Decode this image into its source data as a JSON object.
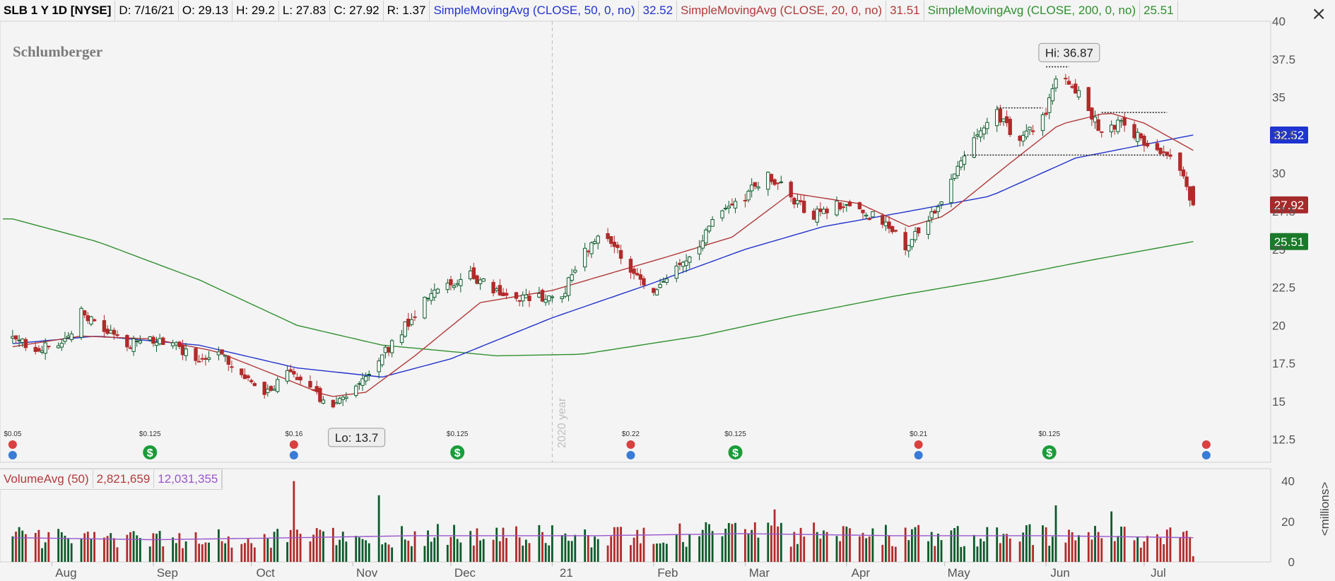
{
  "header": {
    "symbol": "SLB 1 Y 1D [NYSE]",
    "date": "D: 7/16/21",
    "open": "O: 29.13",
    "high": "H: 29.2",
    "low": "L: 27.83",
    "close": "C: 27.92",
    "range": "R: 1.37",
    "sma50_label": "SimpleMovingAvg (CLOSE, 50, 0, no)",
    "sma50_value": "32.52",
    "sma20_label": "SimpleMovingAvg (CLOSE, 20, 0, no)",
    "sma20_value": "31.51",
    "sma200_label": "SimpleMovingAvg (CLOSE, 200, 0, no)",
    "sma200_value": "25.51"
  },
  "company": "Schlumberger",
  "year_marker": "2020 year",
  "hi_label": "Hi: 36.87",
  "lo_label": "Lo: 13.7",
  "price_tags": {
    "sma50": "32.52",
    "close": "27.92",
    "sma200": "25.51"
  },
  "volume_header": {
    "label": "VolumeAvg (50)",
    "volume": "2,821,659",
    "avg": "12,031,355"
  },
  "volume_unit": "<millions>",
  "colors": {
    "up": "#0c5a2a",
    "down": "#b22a2a",
    "sma50": "#2233cc",
    "sma20": "#b23a3a",
    "sma200": "#2f8f2f",
    "vol_avg": "#9955cc",
    "price_label": "#555"
  },
  "chart_data": {
    "type": "candlestick",
    "price_axis": {
      "ticks": [
        "12.5",
        "15",
        "17.5",
        "20",
        "22.5",
        "25",
        "27.5",
        "30",
        "32.5",
        "35",
        "37.5",
        "40"
      ],
      "ylim": [
        11,
        40
      ]
    },
    "volume_axis": {
      "ticks": [
        "0",
        "20",
        "40"
      ],
      "ylim": [
        0,
        42
      ],
      "unit": "<millions>"
    },
    "x_axis_labels": [
      "Aug",
      "Sep",
      "Oct",
      "Nov",
      "Dec",
      "21",
      "Feb",
      "Mar",
      "Apr",
      "May",
      "Jun",
      "Jul"
    ],
    "price_anchors": [
      [
        "2020-07-20",
        19.0
      ],
      [
        "2020-07-27",
        18.6
      ],
      [
        "2020-08-03",
        18.4
      ],
      [
        "2020-08-10",
        20.8
      ],
      [
        "2020-08-17",
        19.6
      ],
      [
        "2020-08-24",
        18.8
      ],
      [
        "2020-08-31",
        19.0
      ],
      [
        "2020-09-07",
        18.8
      ],
      [
        "2020-09-14",
        17.6
      ],
      [
        "2020-09-21",
        18.6
      ],
      [
        "2020-09-28",
        16.6
      ],
      [
        "2020-10-05",
        15.4
      ],
      [
        "2020-10-12",
        16.8
      ],
      [
        "2020-10-19",
        15.6
      ],
      [
        "2020-10-26",
        14.6
      ],
      [
        "2020-11-02",
        15.8
      ],
      [
        "2020-11-09",
        17.8
      ],
      [
        "2020-11-16",
        19.6
      ],
      [
        "2020-11-23",
        21.6
      ],
      [
        "2020-11-30",
        22.6
      ],
      [
        "2020-12-07",
        23.4
      ],
      [
        "2020-12-14",
        22.2
      ],
      [
        "2020-12-21",
        21.6
      ],
      [
        "2021-01-04",
        22.0
      ],
      [
        "2021-01-11",
        25.0
      ],
      [
        "2021-01-18",
        26.0
      ],
      [
        "2021-01-25",
        23.8
      ],
      [
        "2021-02-01",
        22.0
      ],
      [
        "2021-02-08",
        23.8
      ],
      [
        "2021-02-15",
        25.5
      ],
      [
        "2021-02-22",
        27.5
      ],
      [
        "2021-03-01",
        28.5
      ],
      [
        "2021-03-08",
        30.0
      ],
      [
        "2021-03-15",
        28.5
      ],
      [
        "2021-03-22",
        27.2
      ],
      [
        "2021-03-29",
        28.0
      ],
      [
        "2021-04-05",
        27.6
      ],
      [
        "2021-04-12",
        26.8
      ],
      [
        "2021-04-19",
        25.2
      ],
      [
        "2021-04-26",
        26.8
      ],
      [
        "2021-05-03",
        29.5
      ],
      [
        "2021-05-10",
        32.0
      ],
      [
        "2021-05-17",
        34.0
      ],
      [
        "2021-05-24",
        32.0
      ],
      [
        "2021-06-01",
        34.0
      ],
      [
        "2021-06-04",
        36.5
      ],
      [
        "2021-06-11",
        35.2
      ],
      [
        "2021-06-18",
        32.8
      ],
      [
        "2021-06-25",
        33.5
      ],
      [
        "2021-07-01",
        31.8
      ],
      [
        "2021-07-08",
        31.2
      ],
      [
        "2021-07-12",
        30.5
      ],
      [
        "2021-07-16",
        27.92
      ]
    ],
    "sma20_anchors": [
      [
        "2020-07-20",
        18.6
      ],
      [
        "2020-08-10",
        19.3
      ],
      [
        "2020-09-01",
        19.1
      ],
      [
        "2020-09-20",
        18.3
      ],
      [
        "2020-10-10",
        16.6
      ],
      [
        "2020-10-25",
        15.3
      ],
      [
        "2020-11-05",
        15.6
      ],
      [
        "2020-11-20",
        18.0
      ],
      [
        "2020-12-10",
        21.5
      ],
      [
        "2021-01-01",
        22.3
      ],
      [
        "2021-01-20",
        23.5
      ],
      [
        "2021-02-05",
        24.5
      ],
      [
        "2021-02-25",
        25.8
      ],
      [
        "2021-03-15",
        28.7
      ],
      [
        "2021-04-05",
        28.0
      ],
      [
        "2021-04-20",
        26.5
      ],
      [
        "2021-05-01",
        27.2
      ],
      [
        "2021-05-20",
        30.5
      ],
      [
        "2021-06-05",
        33.2
      ],
      [
        "2021-06-20",
        34.0
      ],
      [
        "2021-07-01",
        33.3
      ],
      [
        "2021-07-16",
        31.51
      ]
    ],
    "sma50_anchors": [
      [
        "2020-07-20",
        18.8
      ],
      [
        "2020-08-15",
        19.3
      ],
      [
        "2020-09-15",
        18.7
      ],
      [
        "2020-10-15",
        17.2
      ],
      [
        "2020-11-10",
        16.6
      ],
      [
        "2020-12-01",
        17.8
      ],
      [
        "2021-01-01",
        20.5
      ],
      [
        "2021-02-01",
        22.8
      ],
      [
        "2021-03-01",
        25.0
      ],
      [
        "2021-03-25",
        26.5
      ],
      [
        "2021-04-20",
        27.5
      ],
      [
        "2021-05-15",
        28.5
      ],
      [
        "2021-06-10",
        31.0
      ],
      [
        "2021-07-16",
        32.52
      ]
    ],
    "sma200_anchors": [
      [
        "2020-07-20",
        27.0
      ],
      [
        "2020-08-15",
        25.5
      ],
      [
        "2020-09-15",
        23.0
      ],
      [
        "2020-10-15",
        20.0
      ],
      [
        "2020-11-10",
        18.7
      ],
      [
        "2020-12-15",
        18.0
      ],
      [
        "2021-01-10",
        18.1
      ],
      [
        "2021-02-15",
        19.3
      ],
      [
        "2021-03-15",
        20.6
      ],
      [
        "2021-04-15",
        21.9
      ],
      [
        "2021-05-15",
        23.0
      ],
      [
        "2021-06-15",
        24.3
      ],
      [
        "2021-07-16",
        25.51
      ]
    ],
    "volume_avg_anchors": [
      [
        "2020-07-20",
        12
      ],
      [
        "2020-09-01",
        11
      ],
      [
        "2020-10-15",
        12
      ],
      [
        "2020-11-20",
        13
      ],
      [
        "2021-01-15",
        13
      ],
      [
        "2021-03-01",
        14
      ],
      [
        "2021-04-15",
        13
      ],
      [
        "2021-06-01",
        13
      ],
      [
        "2021-07-16",
        12
      ]
    ],
    "volume_spikes": [
      [
        "2020-10-14",
        40
      ],
      [
        "2020-11-09",
        33
      ],
      [
        "2021-03-10",
        26
      ],
      [
        "2021-06-04",
        28
      ],
      [
        "2021-06-21",
        25
      ]
    ],
    "dividends": [
      {
        "date": "2020-07-20",
        "kind": "dividend",
        "label": "$0.05"
      },
      {
        "date": "2020-08-31",
        "kind": "split",
        "label": "$0.125"
      },
      {
        "date": "2020-10-14",
        "kind": "dividend",
        "label": "$0.16"
      },
      {
        "date": "2020-12-03",
        "kind": "split",
        "label": "$0.125"
      },
      {
        "date": "2021-01-25",
        "kind": "dividend",
        "label": "$0.22"
      },
      {
        "date": "2021-02-26",
        "kind": "split",
        "label": "$0.125"
      },
      {
        "date": "2021-04-23",
        "kind": "dividend",
        "label": "$0.21"
      },
      {
        "date": "2021-06-02",
        "kind": "split",
        "label": "$0.125"
      },
      {
        "date": "2021-07-20",
        "kind": "dividend",
        "label": ""
      }
    ],
    "hi": {
      "date": "2021-06-07",
      "value": 36.87
    },
    "lo": {
      "date": "2020-10-28",
      "value": 13.7
    },
    "levels": [
      {
        "start": "2021-05-17",
        "end": "2021-05-31",
        "value": 34.3
      },
      {
        "start": "2021-06-01",
        "end": "2021-06-08",
        "value": 37.0
      },
      {
        "start": "2021-05-07",
        "end": "2021-07-08",
        "value": 31.2
      },
      {
        "start": "2021-06-18",
        "end": "2021-07-08",
        "value": 34.0
      }
    ]
  }
}
